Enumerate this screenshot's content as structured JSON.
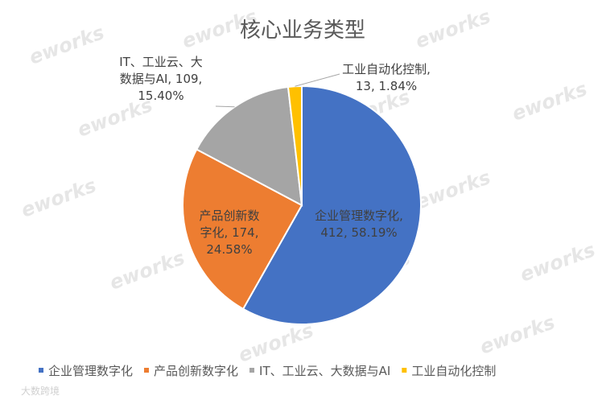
{
  "chart_data": {
    "type": "pie",
    "title": "核心业务类型",
    "categories": [
      "企业管理数字化",
      "产品创新数字化",
      "IT、工业云、大数据与AI",
      "工业自动化控制"
    ],
    "values": [
      412,
      174,
      109,
      13
    ],
    "percents": [
      "58.19%",
      "24.58%",
      "15.40%",
      "1.84%"
    ],
    "colors": [
      "#4472c4",
      "#ed7d31",
      "#a5a5a5",
      "#ffc000"
    ],
    "data_labels": [
      [
        "企业管理数字化,",
        "412, 58.19%"
      ],
      [
        "产品创新数",
        "字化, 174,",
        "24.58%"
      ],
      [
        "IT、工业云、大",
        "数据与AI, 109,",
        "15.40%"
      ],
      [
        "工业自动化控制,",
        "13, 1.84%"
      ]
    ],
    "legend_position": "bottom"
  },
  "watermark": "eworks",
  "corner_mark": "大数跨境"
}
